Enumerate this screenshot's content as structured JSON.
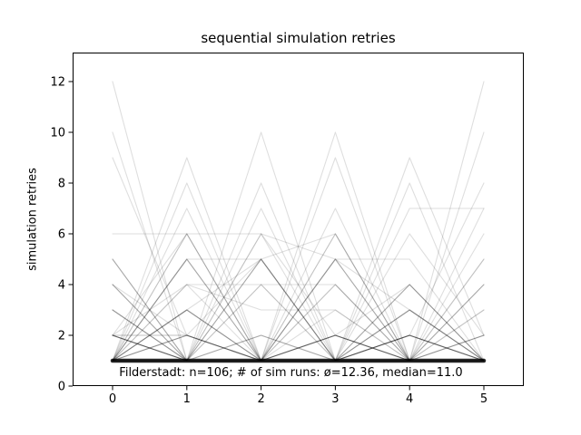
{
  "figure": {
    "background": "#ffffff",
    "accent_color": "#000000"
  },
  "chart_data": {
    "type": "line",
    "title": "sequential simulation retries",
    "ylabel": "simulation retries",
    "xlabel": "",
    "annotation": "Filderstadt: n=106; # of sim runs: ø=12.36, median=11.0",
    "stats": {
      "place": "Filderstadt",
      "n": 106,
      "mean_sim_runs": 12.36,
      "median_sim_runs": 11.0
    },
    "x": [
      0,
      1,
      2,
      3,
      4,
      5
    ],
    "xticks": [
      "0",
      "1",
      "2",
      "3",
      "4",
      "5"
    ],
    "yticks": [
      "0",
      "2",
      "4",
      "6",
      "8",
      "10",
      "12"
    ],
    "ytick_values": [
      0,
      2,
      4,
      6,
      8,
      10,
      12
    ],
    "xtick_values": [
      0,
      1,
      2,
      3,
      4,
      5
    ],
    "xlim": [
      -0.54,
      5.54
    ],
    "ylim": [
      0,
      13.14
    ],
    "grid": false,
    "legend": "none",
    "line_color": "#000000",
    "line_alpha": 0.13,
    "n_series_total": 106,
    "series_note": "106 overlapping low-alpha polylines; entries below are estimated value-sequences with multiplicity (count)",
    "series": [
      {
        "values": [
          1,
          1,
          1,
          1,
          1,
          1
        ],
        "count": 13,
        "lw": 4.5
      },
      {
        "values": [
          2,
          1,
          1,
          1,
          1,
          1
        ],
        "count": 5
      },
      {
        "values": [
          2,
          2,
          1,
          1,
          1,
          1
        ],
        "count": 2
      },
      {
        "values": [
          3,
          1,
          1,
          1,
          1,
          1
        ],
        "count": 3
      },
      {
        "values": [
          4,
          1,
          1,
          1,
          1,
          1
        ],
        "count": 3
      },
      {
        "values": [
          5,
          1,
          1,
          1,
          1,
          1
        ],
        "count": 2
      },
      {
        "values": [
          1,
          3,
          1,
          1,
          1,
          1
        ],
        "count": 4
      },
      {
        "values": [
          1,
          5,
          1,
          1,
          1,
          1
        ],
        "count": 3
      },
      {
        "values": [
          1,
          6,
          1,
          1,
          1,
          1
        ],
        "count": 2
      },
      {
        "values": [
          1,
          2,
          1,
          1,
          1,
          1
        ],
        "count": 2
      },
      {
        "values": [
          1,
          1,
          2,
          1,
          1,
          1
        ],
        "count": 2
      },
      {
        "values": [
          1,
          1,
          1,
          2,
          1,
          1
        ],
        "count": 5
      },
      {
        "values": [
          1,
          1,
          1,
          1,
          2,
          1
        ],
        "count": 3
      },
      {
        "values": [
          1,
          1,
          1,
          1,
          1,
          2
        ],
        "count": 2
      },
      {
        "values": [
          1,
          1,
          1,
          5,
          1,
          1
        ],
        "count": 3
      },
      {
        "values": [
          1,
          1,
          1,
          6,
          1,
          1
        ],
        "count": 2
      },
      {
        "values": [
          1,
          1,
          1,
          1,
          3,
          1
        ],
        "count": 4
      },
      {
        "values": [
          1,
          1,
          1,
          1,
          4,
          1
        ],
        "count": 3
      },
      {
        "values": [
          1,
          1,
          6,
          1,
          1,
          1
        ],
        "count": 1
      },
      {
        "values": [
          1,
          1,
          5,
          1,
          1,
          1
        ],
        "count": 3
      },
      {
        "values": [
          1,
          4,
          1,
          1,
          1,
          1
        ],
        "count": 1
      },
      {
        "values": [
          1,
          1,
          4,
          1,
          1,
          1
        ],
        "count": 1
      },
      {
        "values": [
          1,
          1,
          1,
          4,
          1,
          1
        ],
        "count": 1
      },
      {
        "values": [
          1,
          1,
          1,
          1,
          1,
          3
        ],
        "count": 1
      },
      {
        "values": [
          1,
          1,
          1,
          1,
          1,
          4
        ],
        "count": 2
      },
      {
        "values": [
          1,
          1,
          1,
          1,
          1,
          5
        ],
        "count": 1
      },
      {
        "values": [
          1,
          1,
          1,
          1,
          1,
          6
        ],
        "count": 1
      },
      {
        "values": [
          2,
          1,
          2,
          1,
          2,
          1
        ],
        "count": 1
      },
      {
        "values": [
          1,
          2,
          1,
          2,
          1,
          2
        ],
        "count": 1
      },
      {
        "values": [
          12,
          1,
          1,
          1,
          1,
          1
        ],
        "count": 1
      },
      {
        "values": [
          10,
          1,
          1,
          2,
          1,
          1
        ],
        "count": 1
      },
      {
        "values": [
          9,
          2,
          1,
          1,
          1,
          1
        ],
        "count": 1
      },
      {
        "values": [
          1,
          9,
          1,
          1,
          1,
          1
        ],
        "count": 1
      },
      {
        "values": [
          1,
          8,
          1,
          1,
          2,
          1
        ],
        "count": 1
      },
      {
        "values": [
          1,
          7,
          1,
          3,
          1,
          1
        ],
        "count": 1
      },
      {
        "values": [
          1,
          1,
          10,
          1,
          1,
          1
        ],
        "count": 1
      },
      {
        "values": [
          1,
          1,
          8,
          1,
          1,
          1
        ],
        "count": 1
      },
      {
        "values": [
          1,
          1,
          7,
          1,
          2,
          1
        ],
        "count": 1
      },
      {
        "values": [
          1,
          1,
          1,
          10,
          1,
          1
        ],
        "count": 1
      },
      {
        "values": [
          1,
          1,
          1,
          9,
          1,
          1
        ],
        "count": 1
      },
      {
        "values": [
          2,
          1,
          1,
          7,
          1,
          1
        ],
        "count": 1
      },
      {
        "values": [
          1,
          1,
          1,
          1,
          9,
          2
        ],
        "count": 1
      },
      {
        "values": [
          1,
          1,
          1,
          1,
          8,
          1
        ],
        "count": 1
      },
      {
        "values": [
          1,
          1,
          1,
          1,
          1,
          12
        ],
        "count": 1
      },
      {
        "values": [
          1,
          1,
          1,
          1,
          1,
          10
        ],
        "count": 1
      },
      {
        "values": [
          1,
          1,
          1,
          1,
          2,
          8
        ],
        "count": 1
      },
      {
        "values": [
          1,
          1,
          1,
          1,
          7,
          7
        ],
        "count": 1
      },
      {
        "values": [
          1,
          1,
          1,
          5,
          5,
          1
        ],
        "count": 1
      },
      {
        "values": [
          1,
          2,
          1,
          1,
          1,
          7
        ],
        "count": 1
      },
      {
        "values": [
          2,
          4,
          3,
          3,
          1,
          1
        ],
        "count": 1
      },
      {
        "values": [
          3,
          1,
          4,
          1,
          2,
          1
        ],
        "count": 1
      },
      {
        "values": [
          1,
          4,
          4,
          4,
          1,
          2
        ],
        "count": 1
      },
      {
        "values": [
          4,
          2,
          5,
          1,
          1,
          3
        ],
        "count": 1
      },
      {
        "values": [
          1,
          5,
          5,
          6,
          1,
          4
        ],
        "count": 1
      },
      {
        "values": [
          5,
          1,
          6,
          2,
          4,
          1
        ],
        "count": 1
      },
      {
        "values": [
          2,
          6,
          6,
          5,
          3,
          1
        ],
        "count": 1
      },
      {
        "values": [
          1,
          3,
          5,
          1,
          6,
          2
        ],
        "count": 1
      },
      {
        "values": [
          6,
          6,
          1,
          4,
          1,
          5
        ],
        "count": 1
      }
    ]
  }
}
